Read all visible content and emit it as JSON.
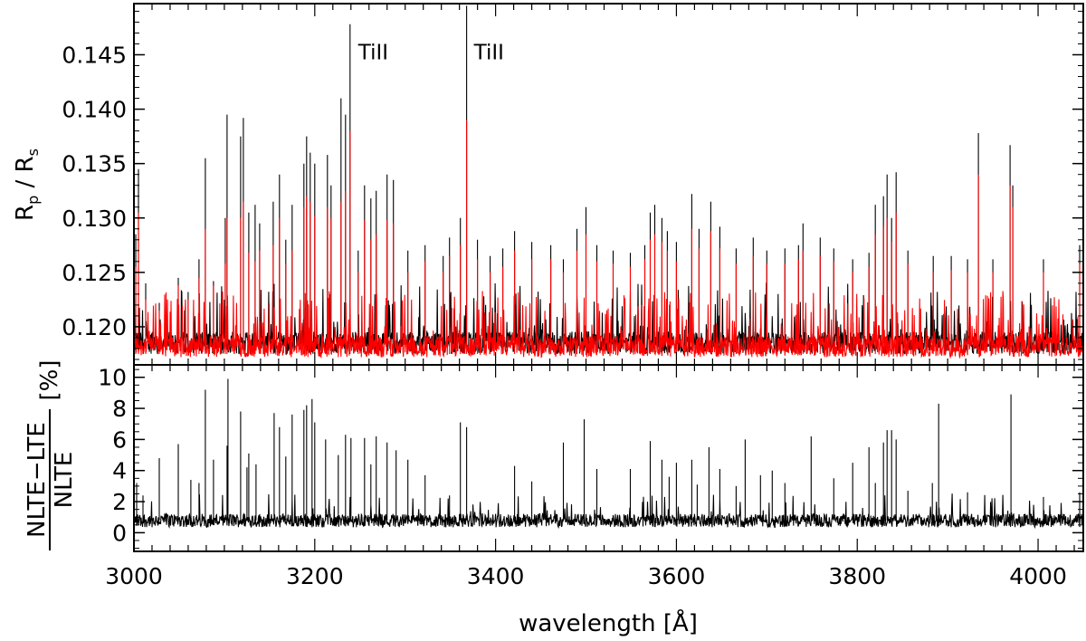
{
  "chart_data": [
    {
      "panel": "top",
      "type": "line",
      "ylabel_main": "R",
      "ylabel_sub1": "p",
      "ylabel_mid": " / R",
      "ylabel_sub2": "s",
      "xlim": [
        3000,
        4050
      ],
      "ylim": [
        0.1165,
        0.1497
      ],
      "yticks": [
        0.12,
        0.125,
        0.13,
        0.135,
        0.14,
        0.145
      ],
      "ytick_labels": [
        "0.120",
        "0.125",
        "0.130",
        "0.135",
        "0.140",
        "0.145"
      ],
      "series_colors": {
        "nlte": "#000000",
        "lte": "#ff0000"
      },
      "baseline": 0.1185,
      "annotations": [
        {
          "text": "TiII",
          "x": 3240
        },
        {
          "text": "TiII",
          "x": 3368
        }
      ],
      "peaks": [
        [
          3002,
          0.1285,
          0.1255
        ],
        [
          3005,
          0.1345,
          0.1305
        ],
        [
          3013,
          0.124,
          0.1225
        ],
        [
          3028,
          0.1222,
          0.1215
        ],
        [
          3049,
          0.1245,
          0.1238
        ],
        [
          3060,
          0.1232,
          0.1225
        ],
        [
          3072,
          0.1262,
          0.1245
        ],
        [
          3079,
          0.1355,
          0.129
        ],
        [
          3088,
          0.1242,
          0.1238
        ],
        [
          3101,
          0.13,
          0.1258
        ],
        [
          3103,
          0.1395,
          0.13
        ],
        [
          3118,
          0.1375,
          0.13
        ],
        [
          3121,
          0.1392,
          0.1315
        ],
        [
          3127,
          0.1305,
          0.1268
        ],
        [
          3134,
          0.1312,
          0.126
        ],
        [
          3139,
          0.1295,
          0.127
        ],
        [
          3154,
          0.1315,
          0.1275
        ],
        [
          3161,
          0.134,
          0.13
        ],
        [
          3168,
          0.128,
          0.1258
        ],
        [
          3175,
          0.1312,
          0.127
        ],
        [
          3188,
          0.135,
          0.131
        ],
        [
          3191,
          0.1375,
          0.132
        ],
        [
          3195,
          0.136,
          0.1315
        ],
        [
          3200,
          0.135,
          0.1302
        ],
        [
          3214,
          0.1358,
          0.131
        ],
        [
          3218,
          0.133,
          0.13
        ],
        [
          3229,
          0.141,
          0.1315
        ],
        [
          3234,
          0.1395,
          0.1325
        ],
        [
          3239,
          0.1478,
          0.138
        ],
        [
          3248,
          0.127,
          0.125
        ],
        [
          3255,
          0.133,
          0.1298
        ],
        [
          3262,
          0.1318,
          0.128
        ],
        [
          3268,
          0.1325,
          0.1285
        ],
        [
          3280,
          0.134,
          0.1298
        ],
        [
          3287,
          0.1335,
          0.1295
        ],
        [
          3303,
          0.127,
          0.125
        ],
        [
          3322,
          0.1275,
          0.126
        ],
        [
          3342,
          0.1265,
          0.125
        ],
        [
          3349,
          0.1282,
          0.1265
        ],
        [
          3361,
          0.13,
          0.1275
        ],
        [
          3368,
          0.1495,
          0.139
        ],
        [
          3380,
          0.128,
          0.1262
        ],
        [
          3394,
          0.1265,
          0.125
        ],
        [
          3408,
          0.1272,
          0.1255
        ],
        [
          3421,
          0.1288,
          0.127
        ],
        [
          3440,
          0.1278,
          0.1262
        ],
        [
          3461,
          0.1275,
          0.1262
        ],
        [
          3475,
          0.1262,
          0.125
        ],
        [
          3490,
          0.129,
          0.127
        ],
        [
          3500,
          0.131,
          0.1285
        ],
        [
          3512,
          0.1275,
          0.126
        ],
        [
          3530,
          0.127,
          0.1258
        ],
        [
          3549,
          0.1268,
          0.1255
        ],
        [
          3565,
          0.1275,
          0.1262
        ],
        [
          3571,
          0.1305,
          0.128
        ],
        [
          3576,
          0.1312,
          0.1285
        ],
        [
          3584,
          0.13,
          0.1278
        ],
        [
          3590,
          0.1288,
          0.127
        ],
        [
          3600,
          0.1278,
          0.126
        ],
        [
          3617,
          0.1322,
          0.129
        ],
        [
          3625,
          0.129,
          0.1272
        ],
        [
          3638,
          0.1315,
          0.1288
        ],
        [
          3648,
          0.1292,
          0.1272
        ],
        [
          3666,
          0.1272,
          0.1258
        ],
        [
          3685,
          0.1282,
          0.1265
        ],
        [
          3700,
          0.127,
          0.1258
        ],
        [
          3720,
          0.1272,
          0.1258
        ],
        [
          3735,
          0.1275,
          0.1262
        ],
        [
          3740,
          0.1295,
          0.127
        ],
        [
          3759,
          0.1282,
          0.1265
        ],
        [
          3774,
          0.1272,
          0.126
        ],
        [
          3795,
          0.1262,
          0.125
        ],
        [
          3813,
          0.1268,
          0.1255
        ],
        [
          3820,
          0.1312,
          0.1285
        ],
        [
          3829,
          0.132,
          0.1292
        ],
        [
          3833,
          0.134,
          0.13
        ],
        [
          3838,
          0.13,
          0.1278
        ],
        [
          3843,
          0.1342,
          0.1305
        ],
        [
          3856,
          0.127,
          0.1258
        ],
        [
          3884,
          0.1265,
          0.125
        ],
        [
          3904,
          0.1265,
          0.1252
        ],
        [
          3922,
          0.1262,
          0.125
        ],
        [
          3934,
          0.1378,
          0.134
        ],
        [
          3950,
          0.1262,
          0.125
        ],
        [
          3969,
          0.1367,
          0.133
        ],
        [
          3972,
          0.133,
          0.131
        ],
        [
          4006,
          0.1262,
          0.125
        ],
        [
          4046,
          0.1275,
          0.1258
        ]
      ]
    },
    {
      "panel": "bottom",
      "type": "line",
      "ylabel_num": "NLTE−LTE",
      "ylabel_den": "NLTE",
      "ylabel_unit": "[%]",
      "xlabel": "wavelength [Å]",
      "xlim": [
        3000,
        4050
      ],
      "ylim": [
        -1.2,
        10.8
      ],
      "xticks": [
        3000,
        3200,
        3400,
        3600,
        3800,
        4000
      ],
      "xtick_labels": [
        "3000",
        "3200",
        "3400",
        "3600",
        "3800",
        "4000"
      ],
      "yticks": [
        0,
        2,
        4,
        6,
        8,
        10
      ],
      "ytick_labels": [
        "0",
        "2",
        "4",
        "6",
        "8",
        "10"
      ],
      "baseline": 0.8,
      "peaks": [
        [
          3003,
          3.2
        ],
        [
          3010,
          2.4
        ],
        [
          3028,
          4.8
        ],
        [
          3049,
          5.7
        ],
        [
          3063,
          3.4
        ],
        [
          3072,
          3.2
        ],
        [
          3079,
          9.2
        ],
        [
          3088,
          4.7
        ],
        [
          3103,
          5.6
        ],
        [
          3104,
          9.9
        ],
        [
          3118,
          7.8
        ],
        [
          3125,
          4.2
        ],
        [
          3127,
          5.1
        ],
        [
          3135,
          4.4
        ],
        [
          3155,
          7.7
        ],
        [
          3161,
          6.8
        ],
        [
          3168,
          4.9
        ],
        [
          3175,
          7.6
        ],
        [
          3188,
          7.9
        ],
        [
          3191,
          8.2
        ],
        [
          3197,
          8.6
        ],
        [
          3200,
          7.1
        ],
        [
          3212,
          6.0
        ],
        [
          3226,
          5.0
        ],
        [
          3234,
          6.3
        ],
        [
          3240,
          6.1
        ],
        [
          3255,
          6.1
        ],
        [
          3262,
          4.4
        ],
        [
          3268,
          6.2
        ],
        [
          3280,
          5.8
        ],
        [
          3290,
          5.3
        ],
        [
          3303,
          4.7
        ],
        [
          3322,
          3.7
        ],
        [
          3349,
          2.4
        ],
        [
          3361,
          7.1
        ],
        [
          3368,
          6.8
        ],
        [
          3421,
          4.3
        ],
        [
          3440,
          3.3
        ],
        [
          3475,
          5.8
        ],
        [
          3498,
          7.3
        ],
        [
          3512,
          4.1
        ],
        [
          3549,
          4.1
        ],
        [
          3571,
          5.9
        ],
        [
          3584,
          4.7
        ],
        [
          3592,
          3.6
        ],
        [
          3600,
          4.5
        ],
        [
          3617,
          4.7
        ],
        [
          3623,
          3.1
        ],
        [
          3636,
          5.5
        ],
        [
          3648,
          4.1
        ],
        [
          3666,
          3.0
        ],
        [
          3676,
          6.0
        ],
        [
          3693,
          3.7
        ],
        [
          3706,
          4.0
        ],
        [
          3720,
          3.2
        ],
        [
          3749,
          6.2
        ],
        [
          3774,
          3.5
        ],
        [
          3795,
          4.5
        ],
        [
          3813,
          5.5
        ],
        [
          3820,
          3.2
        ],
        [
          3829,
          5.8
        ],
        [
          3833,
          6.6
        ],
        [
          3838,
          6.6
        ],
        [
          3843,
          6.0
        ],
        [
          3856,
          2.7
        ],
        [
          3883,
          3.2
        ],
        [
          3890,
          8.3
        ],
        [
          3922,
          2.6
        ],
        [
          3970,
          8.9
        ],
        [
          4006,
          2.3
        ],
        [
          4046,
          2.6
        ]
      ]
    }
  ]
}
